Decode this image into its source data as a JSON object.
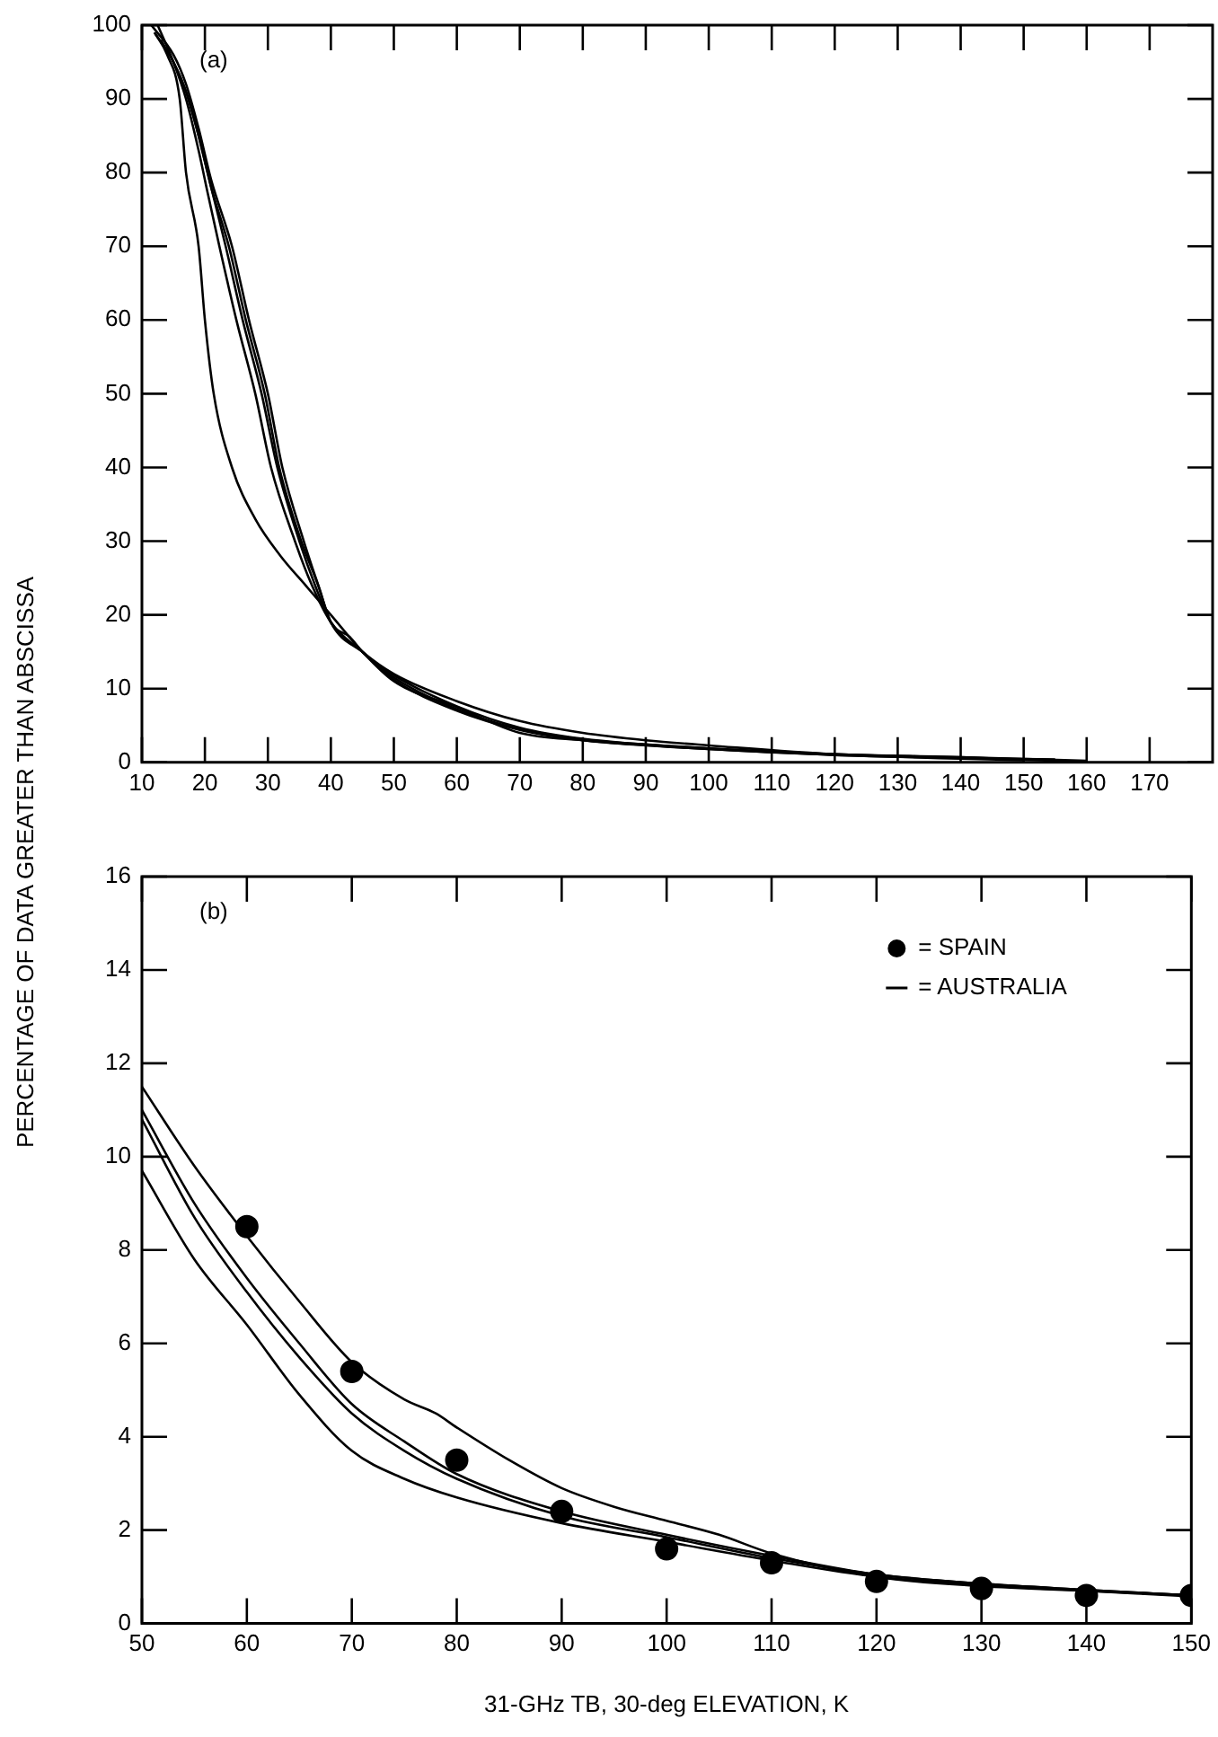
{
  "chart_data": [
    {
      "type": "line",
      "ylabel": "PERCENTAGE OF DATA GREATER THAN ABSCISSA",
      "annotations": [
        "(a)"
      ],
      "xlim": [
        10,
        180
      ],
      "xticks": [
        10,
        20,
        30,
        40,
        50,
        60,
        70,
        80,
        90,
        100,
        110,
        120,
        130,
        140,
        150,
        160,
        170
      ],
      "ylim": [
        0,
        100
      ],
      "yticks": [
        0,
        10,
        20,
        30,
        40,
        50,
        60,
        70,
        80,
        90,
        100
      ],
      "grid": false,
      "legend": false,
      "series": [
        {
          "color": "#000000",
          "x": [
            12,
            14,
            16,
            17,
            19,
            20,
            21.4,
            24.3,
            28,
            32,
            36,
            40,
            45,
            50,
            60,
            70,
            80,
            100,
            120,
            140,
            150
          ],
          "values": [
            99,
            96,
            90,
            80,
            70,
            60,
            50,
            40,
            33,
            28,
            24,
            20,
            15,
            11,
            7.5,
            4,
            3,
            1.8,
            1,
            0.5,
            0.3
          ]
        },
        {
          "color": "#000000",
          "x": [
            12.5,
            15,
            17,
            19,
            20.5,
            22.3,
            25,
            28,
            30.5,
            34.3,
            37,
            40,
            45,
            50,
            60,
            70,
            80,
            90,
            100,
            120,
            140,
            160
          ],
          "values": [
            100,
            95,
            90,
            83,
            77,
            70,
            60,
            50,
            40,
            30,
            24,
            19,
            15,
            11.5,
            7.2,
            4.5,
            3.1,
            2.4,
            1.9,
            1.1,
            0.7,
            0.2
          ]
        },
        {
          "color": "#000000",
          "x": [
            13,
            15,
            17,
            19,
            21,
            23.3,
            26,
            29,
            31.5,
            35,
            37.5,
            40,
            45,
            50,
            60,
            70,
            80,
            90,
            100,
            120,
            140,
            155
          ],
          "values": [
            98,
            95,
            91,
            85,
            78,
            70,
            60,
            50,
            40,
            30,
            24,
            19,
            15,
            11.2,
            7,
            4.4,
            3,
            2.3,
            1.8,
            1,
            0.6,
            0.4
          ]
        },
        {
          "color": "#000000",
          "x": [
            11.5,
            15,
            17,
            19,
            21,
            24.3,
            27,
            30,
            32.3,
            35.7,
            38,
            40,
            45,
            50,
            60,
            70,
            80,
            90,
            100,
            120,
            140,
            158
          ],
          "values": [
            100,
            96,
            92,
            86,
            79,
            70,
            60,
            50,
            40,
            30,
            24,
            19,
            15,
            12,
            8.3,
            5.6,
            4,
            3,
            2.3,
            1.1,
            0.7,
            0.1
          ]
        },
        {
          "color": "#000000",
          "x": [
            12,
            15,
            17,
            19,
            21,
            23.8,
            26.5,
            29.5,
            31.8,
            35.3,
            38,
            40,
            43,
            45,
            50,
            60,
            70,
            80,
            100,
            120,
            140,
            145
          ],
          "values": [
            99,
            95,
            91,
            85,
            78,
            70,
            60,
            50,
            40,
            30,
            24,
            19,
            17,
            15,
            11.8,
            7.6,
            4.7,
            3.2,
            1.9,
            1.1,
            0.6,
            0.5
          ]
        }
      ]
    },
    {
      "type": "line",
      "xlabel": "31-GHz TB, 30-deg ELEVATION, K",
      "annotations": [
        "(b)"
      ],
      "xlim": [
        50,
        150
      ],
      "xticks": [
        50,
        60,
        70,
        80,
        90,
        100,
        110,
        120,
        130,
        140,
        150
      ],
      "ylim": [
        0,
        16
      ],
      "yticks": [
        0,
        2,
        4,
        6,
        8,
        10,
        12,
        14,
        16
      ],
      "grid": false,
      "legend": "top right",
      "series": [
        {
          "type": "scatter",
          "name": "= SPAIN",
          "marker": "circle",
          "color": "#000000",
          "x": [
            60,
            70,
            80,
            90,
            100,
            110,
            120,
            130,
            140,
            150
          ],
          "values": [
            8.5,
            5.4,
            3.5,
            2.4,
            1.6,
            1.3,
            0.9,
            0.75,
            0.6,
            0.6
          ]
        },
        {
          "name": "= AUSTRALIA",
          "color": "#000000",
          "x": [
            50,
            55,
            60,
            65,
            70,
            75,
            78,
            80,
            85,
            90,
            95,
            100,
            105,
            110,
            120,
            130,
            140,
            150
          ],
          "values": [
            11.5,
            9.8,
            8.3,
            6.9,
            5.6,
            4.8,
            4.5,
            4.2,
            3.5,
            2.9,
            2.5,
            2.2,
            1.9,
            1.5,
            1,
            0.8,
            0.7,
            0.6
          ]
        },
        {
          "color": "#000000",
          "x": [
            50,
            55,
            60,
            65,
            70,
            75,
            80,
            90,
            100,
            110,
            120,
            130,
            140,
            150
          ],
          "values": [
            10.8,
            8.7,
            7.1,
            5.7,
            4.5,
            3.7,
            3.1,
            2.3,
            1.85,
            1.4,
            1.05,
            0.85,
            0.72,
            0.6
          ]
        },
        {
          "color": "#000000",
          "x": [
            50,
            55,
            60,
            65,
            70,
            75,
            80,
            90,
            100,
            110,
            120,
            130,
            140,
            150
          ],
          "values": [
            11,
            9,
            7.4,
            6,
            4.7,
            3.9,
            3.2,
            2.4,
            1.9,
            1.45,
            1.05,
            0.85,
            0.72,
            0.6
          ]
        },
        {
          "color": "#000000",
          "x": [
            50,
            55,
            60,
            65,
            70,
            75,
            80,
            90,
            100,
            110,
            120,
            130,
            140,
            150
          ],
          "values": [
            9.7,
            7.8,
            6.4,
            4.9,
            3.7,
            3.1,
            2.7,
            2.15,
            1.75,
            1.35,
            1,
            0.82,
            0.7,
            0.58
          ]
        }
      ]
    }
  ]
}
